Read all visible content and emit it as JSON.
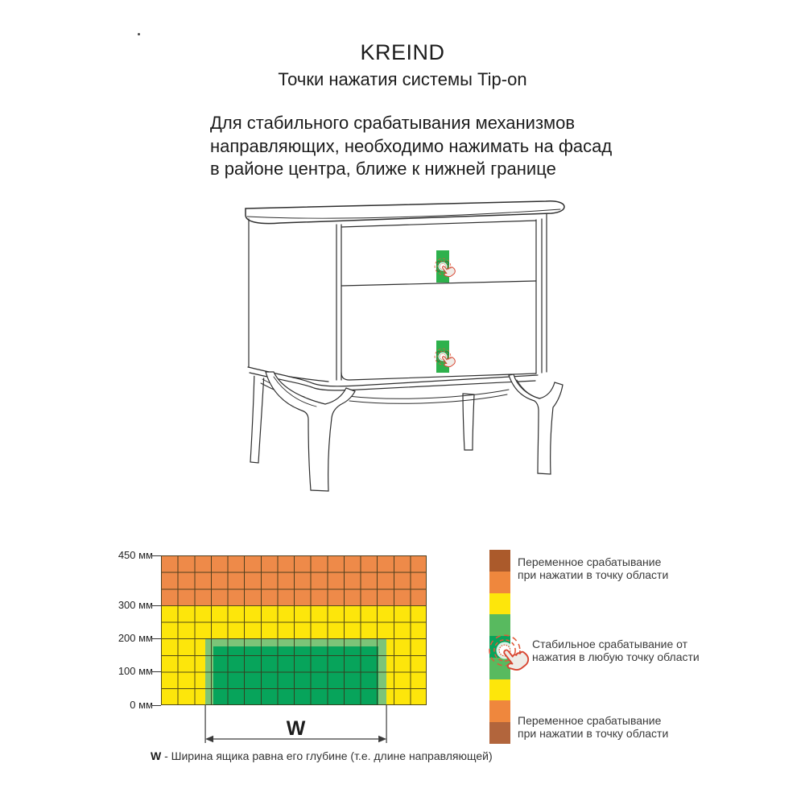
{
  "page": {
    "brand": "KREIND",
    "subtitle": "Точки нажатия системы Tip-on",
    "description_lines": [
      "Для стабильного срабатывания механизмов",
      "направляющих, необходимо нажимать на фасад",
      "в районе центра, ближе к нижней границе"
    ]
  },
  "furniture": {
    "type": "тумба с двумя ящиками (контурный чертёж)",
    "press_zone": {
      "fill": "#2eb14c",
      "band": "#169a41",
      "hand_outline": "#d84531",
      "rings": "#e05a3a"
    }
  },
  "chart_data": {
    "type": "heatmap",
    "description": "Зоны нажатия на фасад (вид спереди)",
    "y_axis": {
      "tick_labels": [
        "450 мм",
        "300 мм",
        "200 мм",
        "100 мм",
        "0 мм"
      ],
      "tick_values_mm": [
        450,
        300,
        200,
        100,
        0
      ],
      "max_mm": 450
    },
    "grid": {
      "columns": 16,
      "rows": 9,
      "cell_mm": 50,
      "line_color": "#3a3418"
    },
    "bands": [
      {
        "zone": "переменное срабатывание",
        "from_mm": 300,
        "to_mm": 450,
        "color": "#ee8a49"
      },
      {
        "zone": "промежуточная зона",
        "from_mm": 0,
        "to_mm": 300,
        "color": "#fde60b"
      }
    ],
    "stable_zone": {
      "zone": "стабильное срабатывание",
      "from_mm": 0,
      "to_mm": 200,
      "left_col": 2.67,
      "right_col": 13.58,
      "fill": "#07a45b",
      "border_color": "#7cc478"
    },
    "dimension_label": "W",
    "footnote_bold": "W",
    "footnote_text": " - Ширина ящика равна его глубине (т.е. длине направляющей)"
  },
  "legend": {
    "bar_colors": [
      "#ab5a2b",
      "#ef873d",
      "#fde60b",
      "#58ba5f",
      "#07a45b",
      "#58ba5f",
      "#fde60b",
      "#ef873d",
      "#b2653c"
    ],
    "items": [
      {
        "lines": [
          "Переменное срабатывание",
          "при нажатии в точку области"
        ]
      },
      {
        "lines": [
          "Стабильное срабатывание от",
          "нажатия в любую точку области"
        ]
      },
      {
        "lines": [
          "Переменное срабатывание",
          "при нажатии в точку области"
        ]
      }
    ]
  }
}
